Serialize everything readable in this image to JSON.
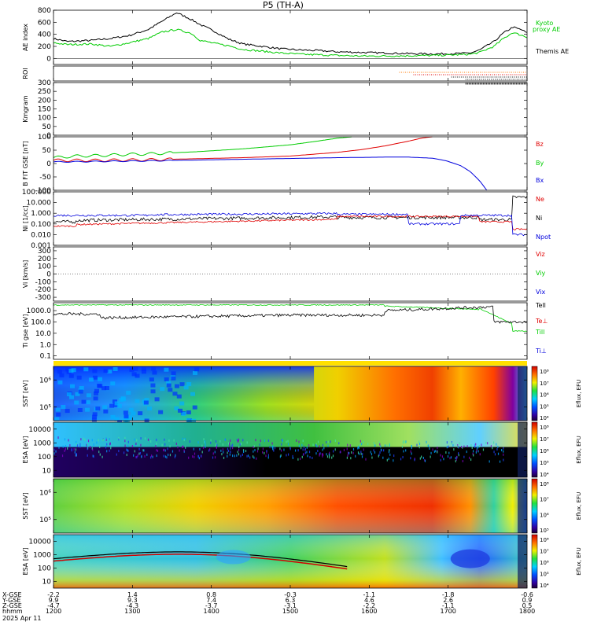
{
  "title": "P5 (TH-A)",
  "date": "2025 Apr 11",
  "colors": {
    "black": "#000000",
    "red": "#e00000",
    "green": "#00cc00",
    "blue": "#0000dd",
    "orange": "#ff7700"
  },
  "chart_data": [
    {
      "type": "line",
      "panel": "ae",
      "ylabel": "AE index",
      "ylim": [
        -100,
        800
      ],
      "yticks": [
        "800",
        "600",
        "400",
        "200",
        "0"
      ],
      "series": [
        {
          "name": "Themis AE",
          "color": "#000000",
          "x": [
            0,
            0.03,
            0.08,
            0.12,
            0.16,
            0.2,
            0.23,
            0.26,
            0.29,
            0.31,
            0.34,
            0.37,
            0.4,
            0.44,
            0.48,
            0.52,
            0.56,
            0.6,
            0.65,
            0.7,
            0.75,
            0.8,
            0.85,
            0.88,
            0.9,
            0.93,
            0.95,
            0.97,
            0.99,
            1.0
          ],
          "y": [
            330,
            280,
            300,
            330,
            380,
            480,
            620,
            760,
            650,
            560,
            450,
            320,
            240,
            200,
            160,
            140,
            130,
            110,
            100,
            90,
            80,
            75,
            80,
            90,
            140,
            280,
            420,
            520,
            470,
            420
          ]
        },
        {
          "name": "Kyoto proxy AE",
          "color": "#00cc00",
          "x": [
            0,
            0.03,
            0.08,
            0.12,
            0.16,
            0.2,
            0.23,
            0.26,
            0.29,
            0.31,
            0.34,
            0.37,
            0.4,
            0.44,
            0.48,
            0.52,
            0.56,
            0.6,
            0.65,
            0.7,
            0.75,
            0.8,
            0.85,
            0.88,
            0.9,
            0.93,
            0.95,
            0.97,
            0.99,
            1.0
          ],
          "y": [
            260,
            230,
            240,
            200,
            260,
            330,
            440,
            480,
            420,
            300,
            250,
            210,
            150,
            120,
            90,
            70,
            60,
            50,
            40,
            40,
            45,
            50,
            60,
            70,
            100,
            200,
            330,
            430,
            380,
            350
          ]
        }
      ]
    },
    {
      "type": "line",
      "panel": "roi",
      "ylabel": "ROI",
      "ylim": [
        0,
        1
      ],
      "yticks": []
    },
    {
      "type": "line",
      "panel": "kmgram",
      "ylabel": "Kmgram",
      "ylim": [
        0,
        300
      ],
      "yticks": [
        "300",
        "250",
        "200",
        "150",
        "100",
        "50",
        "0"
      ]
    },
    {
      "type": "line",
      "panel": "bfield",
      "ylabel": "B FIT GSE [nT]",
      "ylim": [
        -100,
        100
      ],
      "yticks": [
        "100",
        "50",
        "0",
        "-50",
        "-100"
      ],
      "series": [
        {
          "name": "Bz",
          "color": "#e00000",
          "x": [
            0,
            0.1,
            0.2,
            0.3,
            0.4,
            0.5,
            0.6,
            0.65,
            0.7,
            0.75,
            0.78,
            0.8
          ],
          "y": [
            12,
            12,
            14,
            18,
            22,
            28,
            42,
            52,
            66,
            84,
            96,
            100
          ]
        },
        {
          "name": "By",
          "color": "#00cc00",
          "x": [
            0,
            0.05,
            0.1,
            0.15,
            0.2,
            0.3,
            0.4,
            0.5,
            0.55,
            0.6,
            0.63
          ],
          "y": [
            22,
            28,
            30,
            34,
            36,
            44,
            55,
            70,
            82,
            95,
            100
          ]
        },
        {
          "name": "Bx",
          "color": "#0000dd",
          "x": [
            0,
            0.1,
            0.2,
            0.3,
            0.4,
            0.5,
            0.6,
            0.7,
            0.75,
            0.8,
            0.83,
            0.86,
            0.88,
            0.9,
            0.915
          ],
          "y": [
            6,
            8,
            10,
            13,
            16,
            19,
            22,
            24,
            24,
            20,
            10,
            -8,
            -30,
            -65,
            -100
          ]
        }
      ]
    },
    {
      "type": "line",
      "panel": "density",
      "ylabel": "Ni [1/cc]",
      "ylog": true,
      "ylim": [
        0.001,
        100
      ],
      "yticks": [
        "100.000",
        "10.000",
        "1.000",
        "0.100",
        "0.010",
        "0.001"
      ],
      "series": [
        {
          "name": "Ne",
          "color": "#e00000"
        },
        {
          "name": "Ni",
          "color": "#000000"
        },
        {
          "name": "Npot",
          "color": "#0000dd"
        }
      ]
    },
    {
      "type": "line",
      "panel": "velocity",
      "ylabel": "Vi [km/s]",
      "ylim": [
        -350,
        350
      ],
      "yticks": [
        "300",
        "200",
        "100",
        "0",
        "-100",
        "-200",
        "-300"
      ],
      "series": [
        {
          "name": "Viz",
          "color": "#e00000"
        },
        {
          "name": "Viy",
          "color": "#00cc00"
        },
        {
          "name": "Vix",
          "color": "#0000dd"
        }
      ]
    },
    {
      "type": "line",
      "panel": "temperature",
      "ylabel": "Ti gse [eV]",
      "ylog": true,
      "ylim": [
        0.05,
        5000
      ],
      "yticks": [
        "1000.0",
        "100.0",
        "10.0",
        "1.0",
        "0.1"
      ],
      "series": [
        {
          "name": "Tell",
          "color": "#000000"
        },
        {
          "name": "Te⊥",
          "color": "#e00000"
        },
        {
          "name": "Till",
          "color": "#00cc00"
        },
        {
          "name": "Ti⊥",
          "color": "#0000dd"
        }
      ]
    },
    {
      "type": "heatmap",
      "panel": "sst_e",
      "ylabel": "SST [eV]",
      "yticks": [
        "10⁶",
        "10⁵"
      ],
      "colorbar": [
        "10⁸",
        "10⁷",
        "10⁶",
        "10⁵",
        "10⁴"
      ],
      "zlabel": "Eflux, EFU"
    },
    {
      "type": "heatmap",
      "panel": "esa_e",
      "ylabel": "ESA [eV]",
      "yticks": [
        "10000",
        "1000",
        "100",
        "10"
      ],
      "colorbar": [
        "10⁸",
        "10⁷",
        "10⁶",
        "10⁵",
        "10⁴"
      ],
      "zlabel": "Eflux, EFU"
    },
    {
      "type": "heatmap",
      "panel": "sst_i",
      "ylabel": "SST [eV]",
      "yticks": [
        "10⁶",
        "10⁵"
      ],
      "colorbar": [
        "10⁸",
        "10⁷",
        "10⁶",
        "10⁵"
      ],
      "zlabel": "Eflux, EFU"
    },
    {
      "type": "heatmap",
      "panel": "esa_i",
      "ylabel": "ESA [eV]",
      "yticks": [
        "10000",
        "1000",
        "100",
        "10"
      ],
      "colorbar": [
        "10⁸",
        "10⁷",
        "10⁶",
        "10⁵",
        "10⁴"
      ],
      "zlabel": "Eflux, EFU"
    }
  ],
  "ephemeris": {
    "row_labels": [
      "X-GSE",
      "Y-GSE",
      "Z-GSE",
      "hhmm",
      "2025 Apr 11"
    ],
    "columns": [
      {
        "x": "-2.2",
        "y": "9.9",
        "z": "-4.7",
        "t": "1200"
      },
      {
        "x": "1.4",
        "y": "9.3",
        "z": "-4.3",
        "t": "1300"
      },
      {
        "x": "0.8",
        "y": "7.4",
        "z": "-3.7",
        "t": "1400"
      },
      {
        "x": "-0.3",
        "y": "6.3",
        "z": "-3.1",
        "t": "1500"
      },
      {
        "x": "-1.1",
        "y": "4.6",
        "z": "-2.2",
        "t": "1600"
      },
      {
        "x": "-1.8",
        "y": "2.6",
        "z": "-1.1",
        "t": "1700"
      },
      {
        "x": "-0.6",
        "y": "0.9",
        "z": "0.5",
        "t": "1800"
      }
    ]
  }
}
